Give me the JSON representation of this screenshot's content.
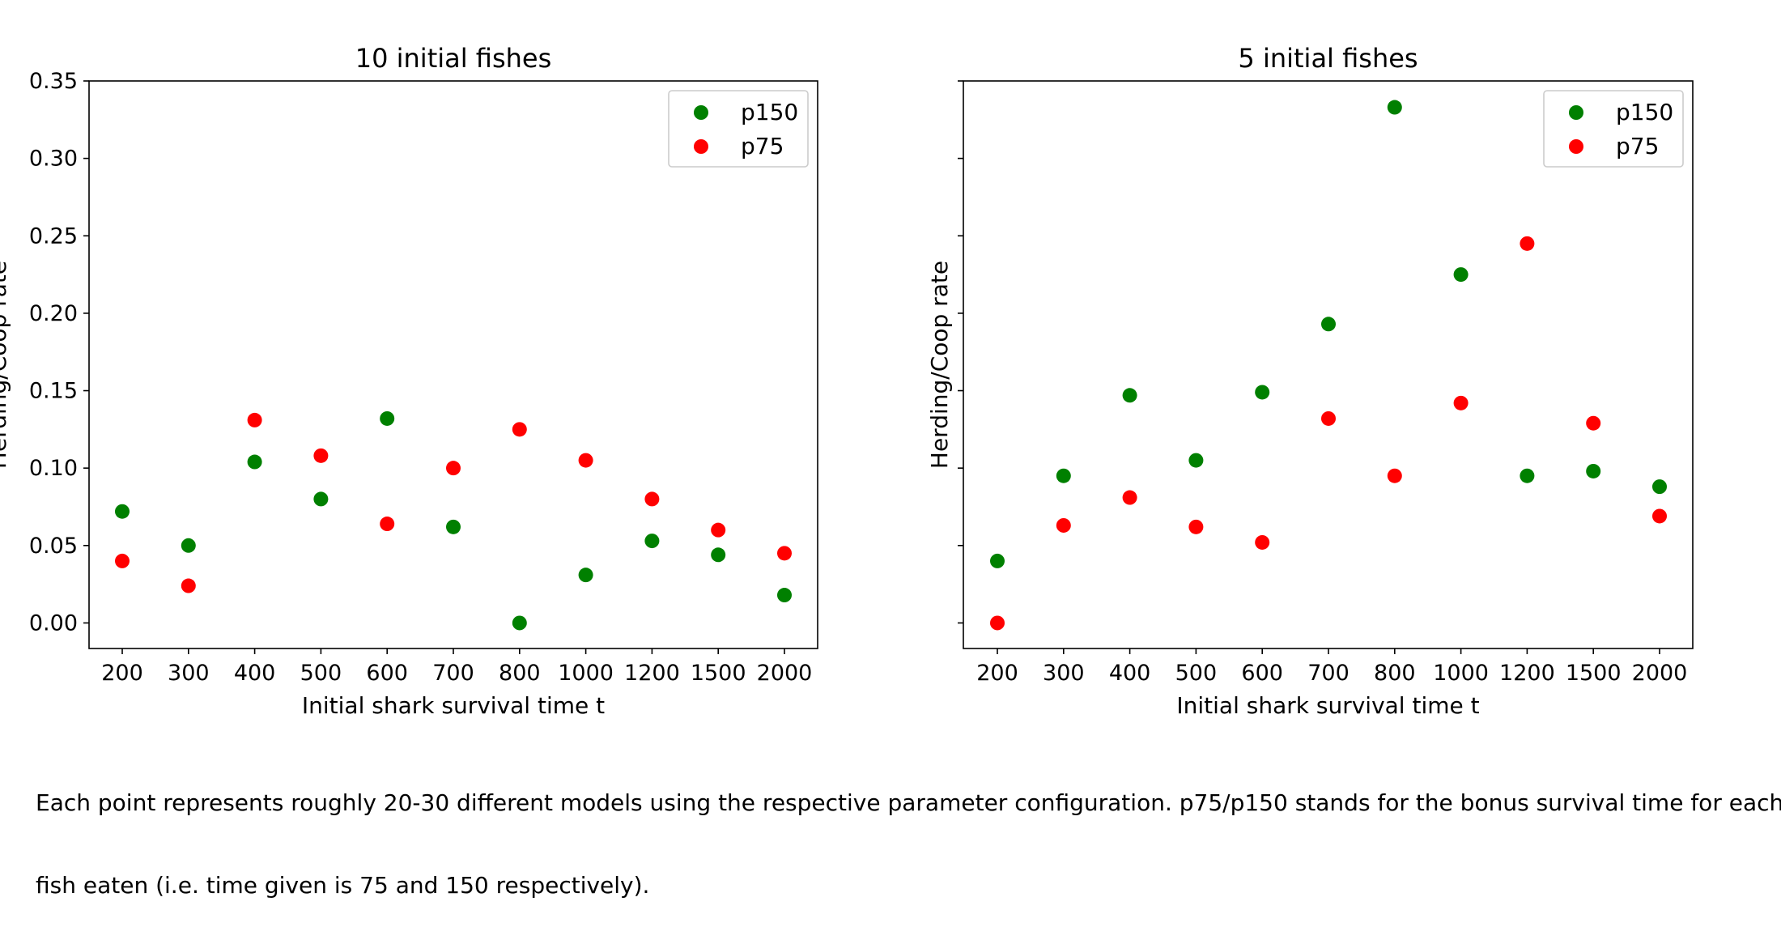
{
  "figure": {
    "caption_line1": "Each point represents roughly 20-30 different models using the respective parameter configuration. p75/p150 stands for the bonus survival time for each",
    "caption_line2": "fish eaten (i.e. time given is 75 and 150 respectively)."
  },
  "chart_data": [
    {
      "type": "scatter",
      "title": "10 initial fishes",
      "xlabel": "Initial shark survival time t",
      "ylabel": "Herding/Coop rate",
      "categories": [
        "200",
        "300",
        "400",
        "500",
        "600",
        "700",
        "800",
        "1000",
        "1200",
        "1500",
        "2000"
      ],
      "ylim": [
        -0.0165,
        0.35
      ],
      "yticks": [
        0.0,
        0.05,
        0.1,
        0.15,
        0.2,
        0.25,
        0.3,
        0.35
      ],
      "ytick_labels": [
        "0.00",
        "0.05",
        "0.10",
        "0.15",
        "0.20",
        "0.25",
        "0.30",
        "0.35"
      ],
      "show_ytick_labels": true,
      "grid": false,
      "legend": "top-right",
      "series": [
        {
          "name": "p150",
          "color": "#008000",
          "values": [
            0.072,
            0.05,
            0.104,
            0.08,
            0.132,
            0.062,
            0.0,
            0.031,
            0.053,
            0.044,
            0.018
          ]
        },
        {
          "name": "p75",
          "color": "#ff0000",
          "values": [
            0.04,
            0.024,
            0.131,
            0.108,
            0.064,
            0.1,
            0.125,
            0.105,
            0.08,
            0.06,
            0.045
          ]
        }
      ]
    },
    {
      "type": "scatter",
      "title": "5 initial fishes",
      "xlabel": "Initial shark survival time t",
      "ylabel": "Herding/Coop rate",
      "categories": [
        "200",
        "300",
        "400",
        "500",
        "600",
        "700",
        "800",
        "1000",
        "1200",
        "1500",
        "2000"
      ],
      "ylim": [
        -0.0165,
        0.35
      ],
      "yticks": [
        0.0,
        0.05,
        0.1,
        0.15,
        0.2,
        0.25,
        0.3,
        0.35
      ],
      "ytick_labels": [
        "0.00",
        "0.05",
        "0.10",
        "0.15",
        "0.20",
        "0.25",
        "0.30",
        "0.35"
      ],
      "show_ytick_labels": false,
      "grid": false,
      "legend": "top-right",
      "series": [
        {
          "name": "p150",
          "color": "#008000",
          "values": [
            0.04,
            0.095,
            0.147,
            0.105,
            0.149,
            0.193,
            0.333,
            0.225,
            0.095,
            0.098,
            0.088
          ]
        },
        {
          "name": "p75",
          "color": "#ff0000",
          "values": [
            0.0,
            0.063,
            0.081,
            0.062,
            0.052,
            0.132,
            0.095,
            0.142,
            0.245,
            0.129,
            0.069
          ]
        }
      ]
    }
  ]
}
